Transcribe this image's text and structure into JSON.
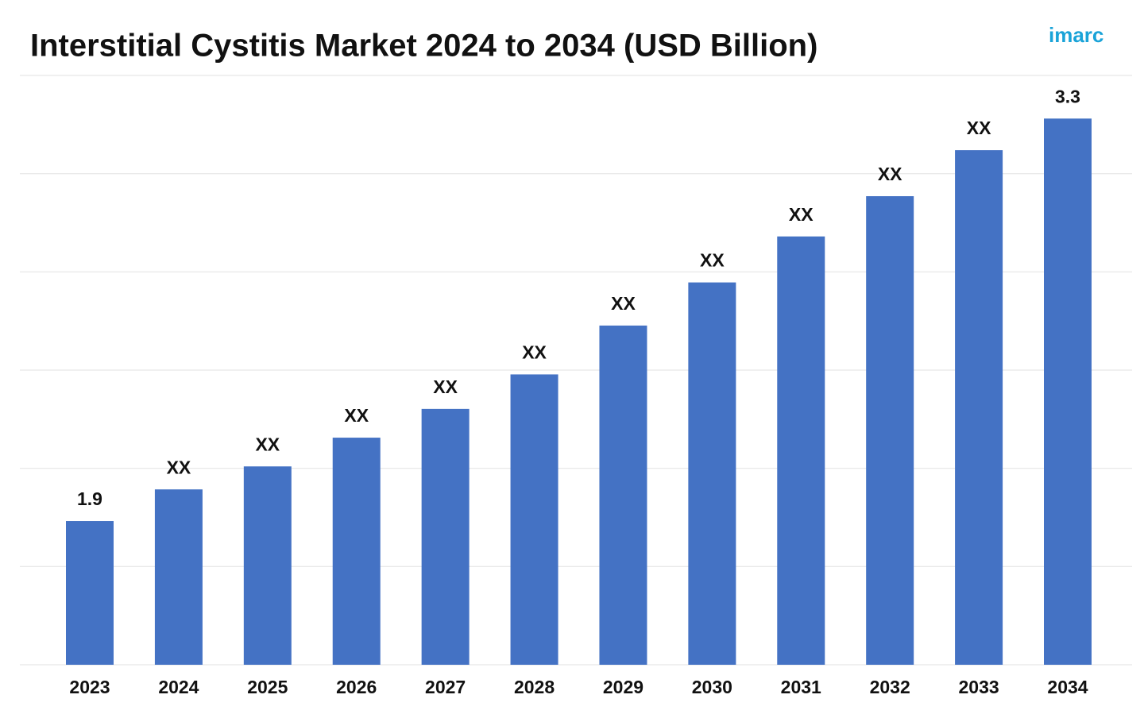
{
  "chart_data": {
    "type": "bar",
    "title": "Interstitial Cystitis Market 2024 to 2034 (USD Billion)",
    "logo": "imarc",
    "categories": [
      "2023",
      "2024",
      "2025",
      "2026",
      "2027",
      "2028",
      "2029",
      "2030",
      "2031",
      "2032",
      "2033",
      "2034"
    ],
    "values": [
      1.9,
      2.01,
      2.09,
      2.19,
      2.29,
      2.41,
      2.58,
      2.73,
      2.89,
      3.03,
      3.19,
      3.3
    ],
    "value_labels": [
      "1.9",
      "XX",
      "XX",
      "XX",
      "XX",
      "XX",
      "XX",
      "XX",
      "XX",
      "XX",
      "XX",
      "3.3"
    ],
    "color": "#4472c4",
    "ylim": [
      1.4,
      3.45
    ],
    "grid": true
  }
}
